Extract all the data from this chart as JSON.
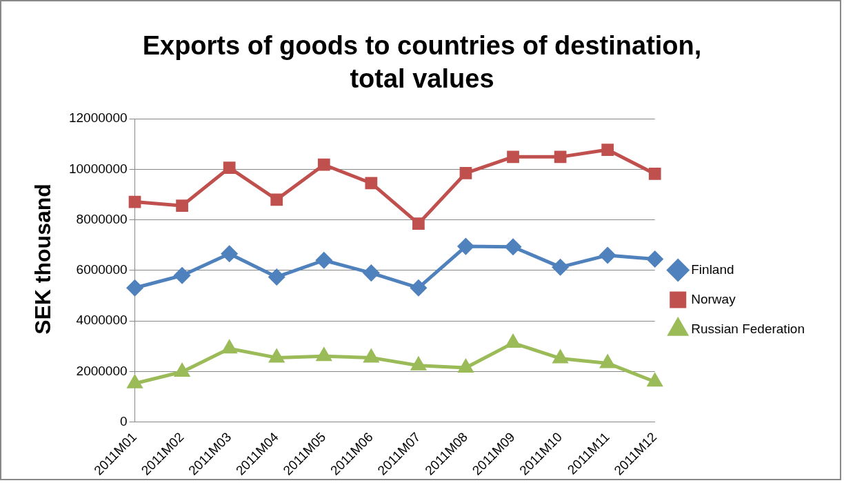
{
  "chart_data": {
    "type": "line",
    "title": "Exports of goods to countries of destination,\ntotal values",
    "ylabel": "SEK thousand",
    "categories": [
      "2011M01",
      "2011M02",
      "2011M03",
      "2011M04",
      "2011M05",
      "2011M06",
      "2011M07",
      "2011M08",
      "2011M09",
      "2011M10",
      "2011M11",
      "2011M12"
    ],
    "series": [
      {
        "name": "Finland",
        "color": "#4f81bd",
        "marker": "diamond",
        "values": [
          5310000,
          5800000,
          6660000,
          5740000,
          6400000,
          5900000,
          5310000,
          6950000,
          6930000,
          6130000,
          6600000,
          6450000
        ]
      },
      {
        "name": "Norway",
        "color": "#c0504d",
        "marker": "square",
        "values": [
          8710000,
          8560000,
          10060000,
          8800000,
          10180000,
          9450000,
          7850000,
          9850000,
          10490000,
          10490000,
          10770000,
          9820000
        ]
      },
      {
        "name": "Russian Federation",
        "color": "#9bbb59",
        "marker": "triangle",
        "values": [
          1530000,
          1990000,
          2910000,
          2550000,
          2610000,
          2550000,
          2240000,
          2150000,
          3130000,
          2520000,
          2330000,
          1600000
        ]
      }
    ],
    "ylim": [
      0,
      12000000
    ],
    "yticks": [
      0,
      2000000,
      4000000,
      6000000,
      8000000,
      10000000,
      12000000
    ],
    "grid": "y",
    "legend": "right",
    "line_style": "solid"
  }
}
